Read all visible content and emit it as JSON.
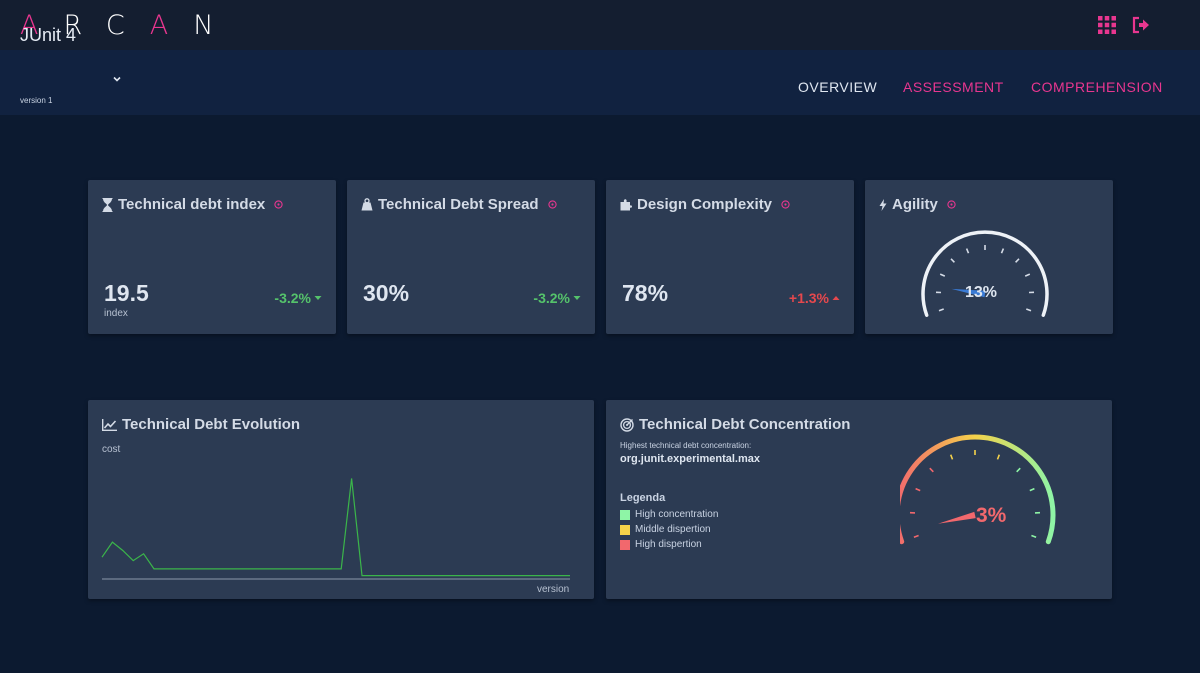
{
  "app": {
    "logo_letters": [
      "A",
      "R",
      "C",
      "A",
      "N"
    ]
  },
  "header": {
    "icons": [
      "apps-grid-icon",
      "logout-icon"
    ]
  },
  "project": {
    "name": "JUnit 4",
    "version": "version 1"
  },
  "nav": {
    "tabs": [
      {
        "label": "OVERVIEW",
        "color": "#dfe6f0"
      },
      {
        "label": "ASSESSMENT",
        "color": "#e8368f"
      },
      {
        "label": "COMPREHENSION",
        "color": "#e8368f"
      }
    ]
  },
  "cards": {
    "debt_index": {
      "title": "Technical debt index",
      "icon": "hourglass-icon",
      "value": "19.5",
      "unit": "index",
      "trend": "-3.2%"
    },
    "debt_spread": {
      "title": "Technical Debt Spread",
      "icon": "weight-icon",
      "value": "30%",
      "trend": "-3.2%"
    },
    "complexity": {
      "title": "Design Complexity",
      "icon": "puzzle-icon",
      "value": "78%",
      "trend": "+1.3%"
    },
    "agility": {
      "title": "Agility",
      "icon": "bolt-icon",
      "value": "13%",
      "gauge_fraction": 0.13
    },
    "evolution": {
      "title": "Technical Debt Evolution",
      "icon": "line-chart-icon",
      "ylabel": "cost",
      "xlabel": "version"
    },
    "concentration": {
      "title": "Technical Debt Concentration",
      "icon": "target-icon",
      "subtitle": "Highest technical debt concentration:",
      "package": "org.junit.experimental.max",
      "legend_title": "Legenda",
      "legend": [
        {
          "label": "High concentration",
          "color": "#8ef5a6"
        },
        {
          "label": "Middle dispertion",
          "color": "#f5d24a"
        },
        {
          "label": "High dispertion",
          "color": "#f2686d"
        }
      ],
      "value": "3%",
      "gauge_fraction": 0.03
    }
  },
  "colors": {
    "accent": "#e8368f",
    "positive": "#55c36b",
    "negative": "#e5484d",
    "card": "#2c3b53"
  },
  "chart_data": {
    "type": "line",
    "title": "Technical Debt Evolution",
    "xlabel": "version",
    "ylabel": "cost",
    "x": [
      1,
      2,
      3,
      4,
      5,
      6,
      7,
      8,
      9,
      10,
      11,
      12,
      13,
      14,
      15,
      16,
      17,
      18,
      19,
      20,
      21,
      22,
      23,
      24,
      25,
      26,
      27,
      28,
      29,
      30,
      31,
      32,
      33,
      34,
      35,
      36,
      37,
      38,
      39,
      40,
      41,
      42,
      43,
      44,
      45,
      46
    ],
    "series": [
      {
        "values": [
          13,
          22,
          17,
          11,
          15,
          6,
          6,
          6,
          6,
          6,
          6,
          6,
          6,
          6,
          6,
          6,
          6,
          6,
          6,
          6,
          6,
          6,
          6,
          6,
          60,
          2,
          2,
          2,
          2,
          2,
          2,
          2,
          2,
          2,
          2,
          2,
          2,
          2,
          2,
          2,
          2,
          2,
          2,
          2,
          2,
          2
        ]
      }
    ],
    "ylim": [
      0,
      65
    ]
  }
}
